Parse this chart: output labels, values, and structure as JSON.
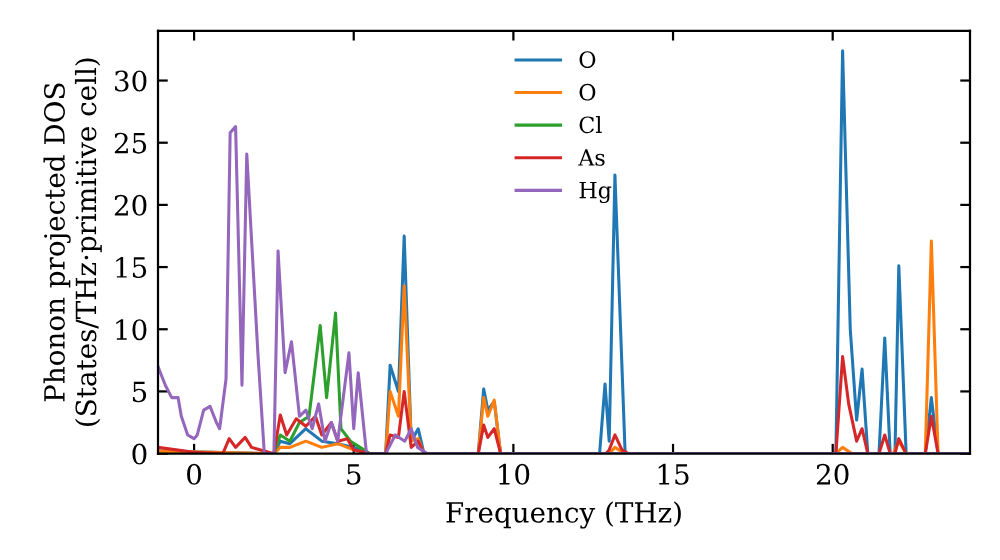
{
  "chart_data": {
    "type": "line",
    "xlabel": "Frequency (THz)",
    "ylabel": "Phonon projected DOS\n(States/THz·primitive cell)",
    "xlim": [
      -1.13,
      24.3
    ],
    "ylim": [
      0,
      34
    ],
    "xticks": [
      0,
      5,
      10,
      15,
      20
    ],
    "yticks": [
      0,
      5,
      10,
      15,
      20,
      25,
      30
    ],
    "grid": false,
    "legend": "top",
    "marker": "none",
    "line_style": "solid",
    "series": [
      {
        "name": "O",
        "color": "#1f77b4",
        "x": [
          -1.13,
          2.5,
          2.7,
          3.0,
          3.5,
          4.0,
          4.5,
          5.0,
          5.5,
          6.0,
          6.14,
          6.4,
          6.58,
          6.8,
          7.02,
          7.2,
          8.9,
          9.07,
          9.2,
          9.4,
          9.6,
          12.7,
          12.87,
          13.0,
          13.18,
          13.5,
          20.1,
          20.31,
          20.55,
          20.75,
          20.92,
          21.1,
          21.45,
          21.63,
          21.8,
          21.95,
          22.07,
          22.3,
          22.9,
          23.09,
          23.3,
          24.3
        ],
        "values": [
          0.2,
          0,
          1,
          0.8,
          2,
          1,
          0.8,
          0.5,
          0,
          0,
          7.1,
          5,
          17.5,
          1,
          2,
          0,
          0,
          5.2,
          3.5,
          4.2,
          0,
          0,
          5.6,
          1,
          22.4,
          0,
          0,
          32.4,
          10,
          2.7,
          6.8,
          0,
          0,
          9.3,
          0,
          0,
          15.1,
          0,
          0,
          4.5,
          0,
          0
        ]
      },
      {
        "name": "O",
        "color": "#ff7f0e",
        "x": [
          -1.13,
          2.5,
          2.7,
          3.0,
          3.5,
          4.0,
          4.5,
          5.0,
          5.5,
          6.0,
          6.14,
          6.4,
          6.58,
          6.8,
          7.02,
          7.2,
          8.9,
          9.07,
          9.2,
          9.4,
          9.6,
          13.0,
          13.18,
          13.5,
          20.1,
          20.31,
          20.6,
          21.9,
          22.07,
          22.3,
          22.9,
          23.09,
          23.3,
          24.3
        ],
        "values": [
          0.2,
          0,
          0.5,
          0.5,
          1,
          0.5,
          0.8,
          0.3,
          0,
          0,
          5,
          3,
          13.5,
          1,
          1.2,
          0,
          0,
          4.5,
          3,
          4.3,
          0,
          0,
          0.5,
          0,
          0,
          0.5,
          0,
          0,
          1,
          0,
          0,
          17.1,
          0,
          0
        ]
      },
      {
        "name": "Cl",
        "color": "#2ca02c",
        "x": [
          2.5,
          2.7,
          3.0,
          3.3,
          3.6,
          3.95,
          4.15,
          4.43,
          4.6,
          4.9,
          5.2,
          5.5
        ],
        "values": [
          0,
          1.5,
          1,
          2.5,
          3,
          10.3,
          4.5,
          11.3,
          2,
          1,
          0.5,
          0
        ]
      },
      {
        "name": "As",
        "color": "#d62728",
        "x": [
          -1.13,
          0,
          0.9,
          1.1,
          1.3,
          1.6,
          1.8,
          2.5,
          2.7,
          2.9,
          3.2,
          3.5,
          3.8,
          4.0,
          4.3,
          4.5,
          4.8,
          5.0,
          5.5,
          6.0,
          6.14,
          6.4,
          6.58,
          6.8,
          7.02,
          7.2,
          8.9,
          9.07,
          9.2,
          9.4,
          9.6,
          12.9,
          13.0,
          13.18,
          13.4,
          13.6,
          20.1,
          20.31,
          20.5,
          20.75,
          20.92,
          21.1,
          21.45,
          21.63,
          21.8,
          21.95,
          22.07,
          22.3,
          22.9,
          23.09,
          23.3,
          24.3
        ],
        "values": [
          0.5,
          0.1,
          0,
          1.2,
          0.5,
          1.3,
          0.5,
          0,
          3.1,
          1.5,
          2.8,
          2.2,
          3,
          1.5,
          2.5,
          1,
          1.2,
          0.3,
          0,
          0,
          1.5,
          1.3,
          5,
          0.5,
          1,
          0,
          0,
          2.3,
          1.3,
          2,
          0,
          0,
          0.3,
          1.5,
          0.3,
          0,
          0,
          7.8,
          4,
          1,
          2,
          0,
          0,
          1.5,
          0,
          0,
          1.2,
          0,
          0,
          3,
          0,
          0
        ]
      },
      {
        "name": "Hg",
        "color": "#9467bd",
        "x": [
          -1.13,
          -0.9,
          -0.7,
          -0.5,
          -0.4,
          -0.2,
          0,
          0.1,
          0.3,
          0.5,
          0.7,
          0.8,
          1.0,
          1.13,
          1.3,
          1.5,
          1.65,
          2.0,
          2.2,
          2.5,
          2.63,
          2.85,
          3.05,
          3.3,
          3.5,
          3.7,
          3.9,
          4.1,
          4.3,
          4.5,
          4.85,
          5.0,
          5.14,
          5.4,
          6.0,
          6.3,
          6.6,
          6.8,
          7.0,
          7.3,
          24.3
        ],
        "values": [
          7,
          5.5,
          4.5,
          4.5,
          3,
          1.5,
          1.2,
          1.5,
          3.5,
          3.8,
          2.5,
          2,
          6,
          25.8,
          26.3,
          5.5,
          24.1,
          8,
          0,
          0,
          16.3,
          6.5,
          9,
          3,
          3.5,
          2,
          4,
          1,
          2.5,
          1,
          8.1,
          2,
          6.5,
          0,
          0,
          1.5,
          1,
          2,
          0.5,
          0,
          0
        ]
      }
    ]
  }
}
